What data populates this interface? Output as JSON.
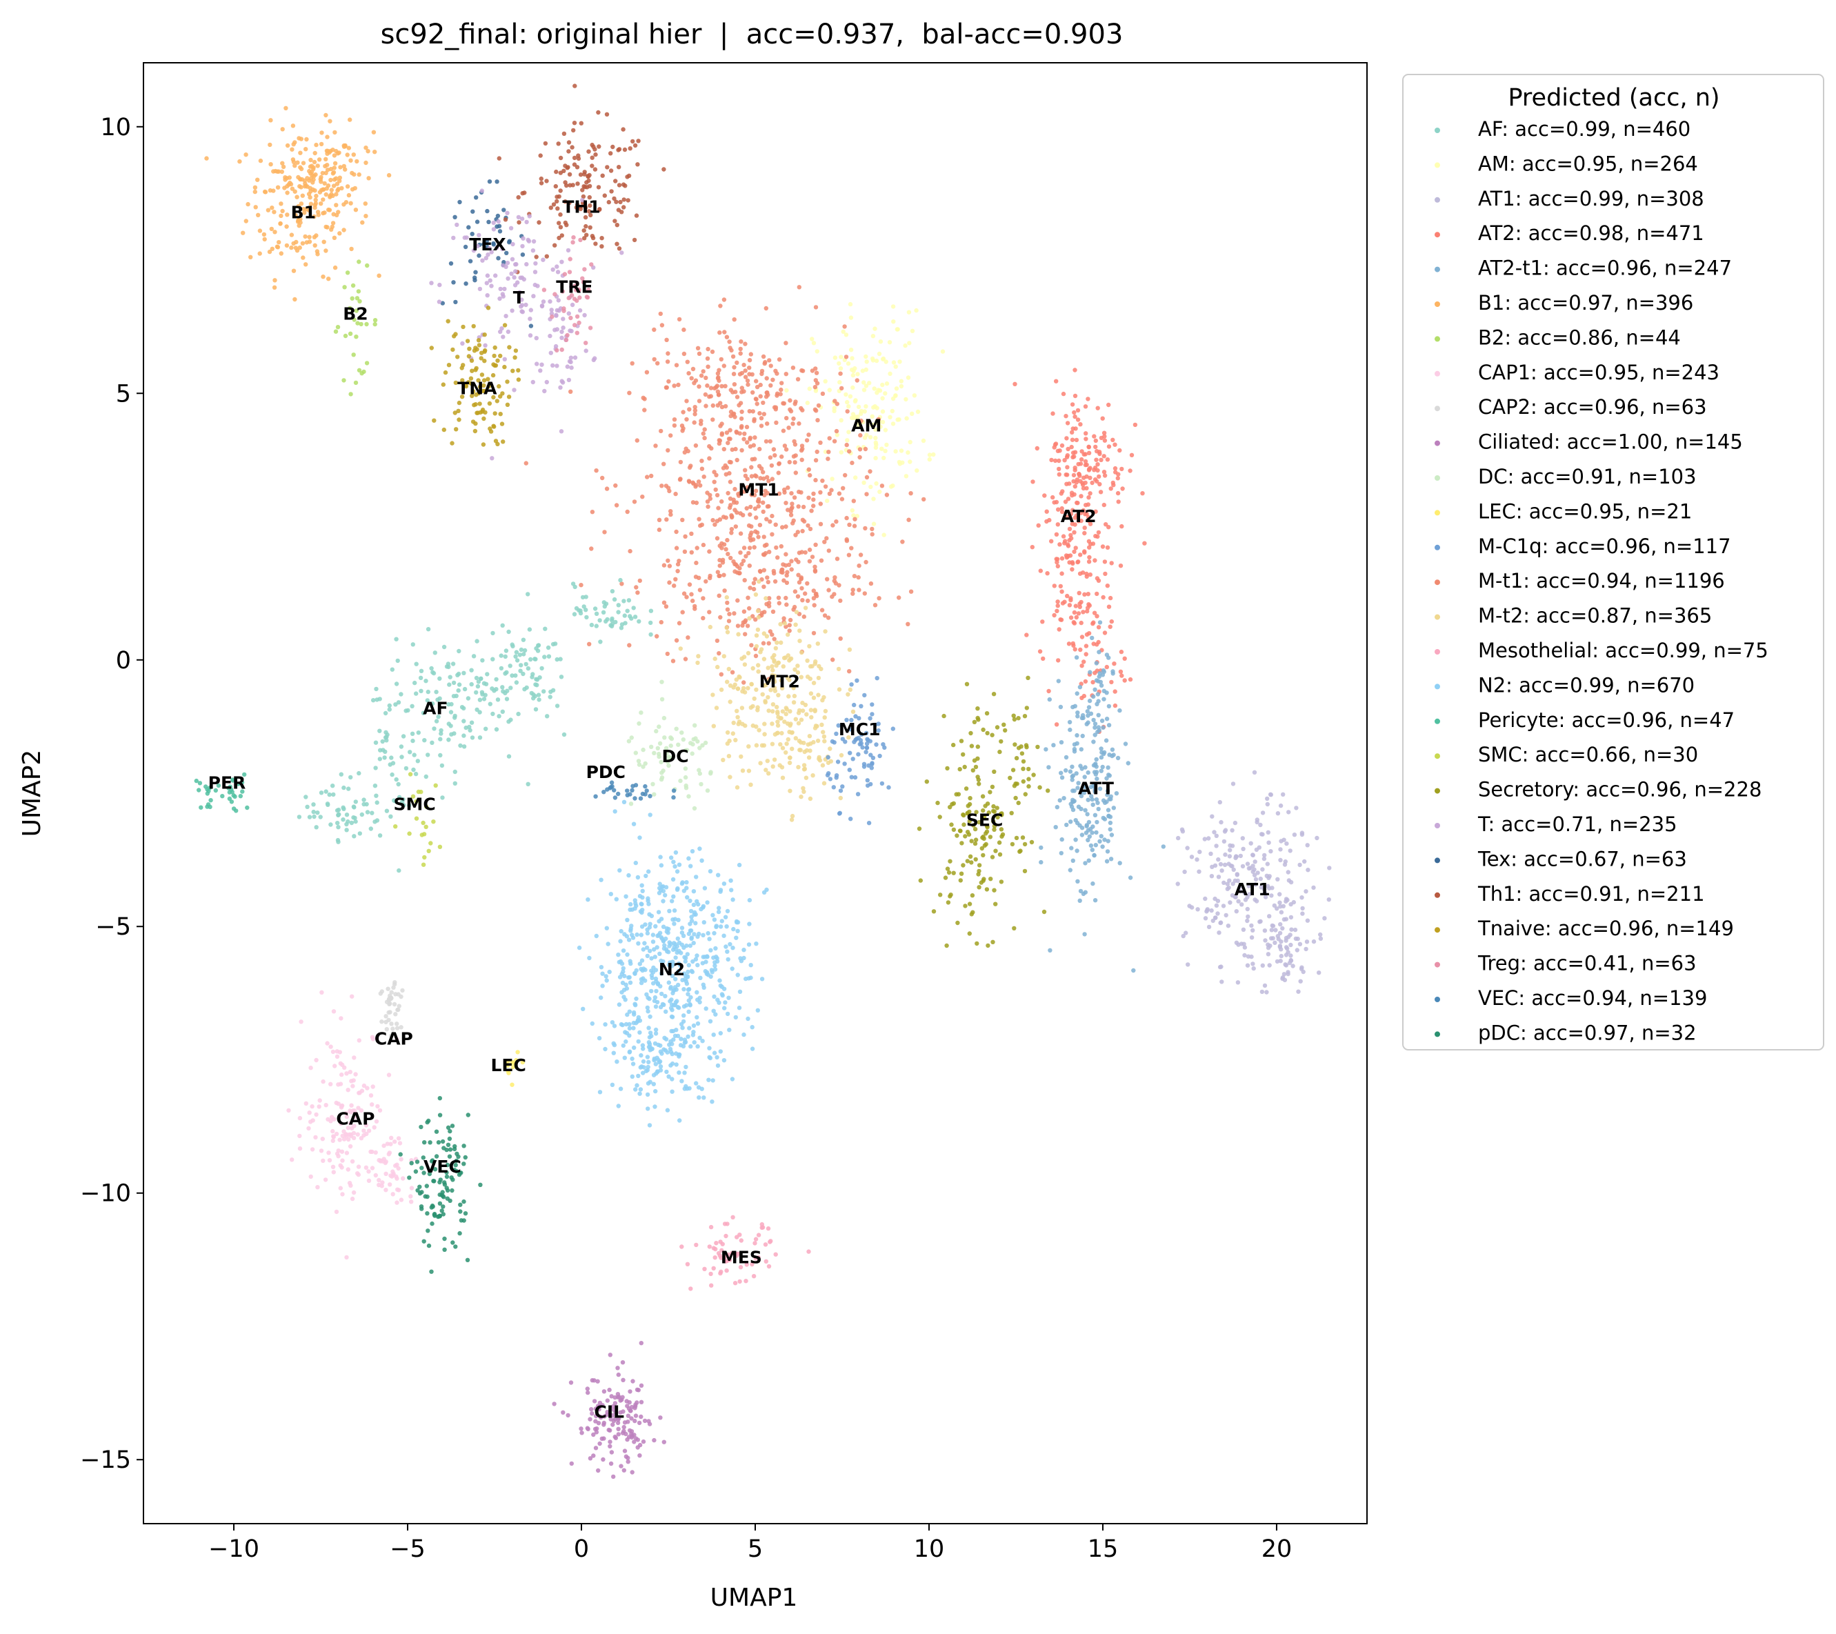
{
  "chart_data": {
    "type": "scatter",
    "title": "sc92_final: original hier  |  acc=0.937,  bal-acc=0.903",
    "xlabel": "UMAP1",
    "ylabel": "UMAP2",
    "xlim": [
      -12.6,
      22.6
    ],
    "ylim": [
      -16.2,
      11.2
    ],
    "xticks": [
      -10,
      -5,
      0,
      5,
      10,
      15,
      20
    ],
    "yticks": [
      -15,
      -10,
      -5,
      0,
      5,
      10
    ],
    "xtick_labels": [
      "−10",
      "−5",
      "0",
      "5",
      "10",
      "15",
      "20"
    ],
    "ytick_labels": [
      "−15",
      "−10",
      "−5",
      "0",
      "5",
      "10"
    ],
    "grid": false,
    "legend_title": "Predicted (acc, n)",
    "legend_position": "outside-right-top",
    "series": [
      {
        "name": "AF: acc=0.99, n=460",
        "color": "#8dd3c7"
      },
      {
        "name": "AM: acc=0.95, n=264",
        "color": "#ffffb3"
      },
      {
        "name": "AT1: acc=0.99, n=308",
        "color": "#bebada"
      },
      {
        "name": "AT2: acc=0.98, n=471",
        "color": "#fb8072"
      },
      {
        "name": "AT2-t1: acc=0.96, n=247",
        "color": "#80b1d3"
      },
      {
        "name": "B1: acc=0.97, n=396",
        "color": "#fdb462"
      },
      {
        "name": "B2: acc=0.86, n=44",
        "color": "#b3de69"
      },
      {
        "name": "CAP1: acc=0.95, n=243",
        "color": "#fccde5"
      },
      {
        "name": "CAP2: acc=0.96, n=63",
        "color": "#d9d9d9"
      },
      {
        "name": "Ciliated: acc=1.00, n=145",
        "color": "#bc80bd"
      },
      {
        "name": "DC: acc=0.91, n=103",
        "color": "#ccebc5"
      },
      {
        "name": "LEC: acc=0.95, n=21",
        "color": "#ffed6f"
      },
      {
        "name": "M-C1q: acc=0.96, n=117",
        "color": "#6fa0d6"
      },
      {
        "name": "M-t1: acc=0.94, n=1196",
        "color": "#f08a70"
      },
      {
        "name": "M-t2: acc=0.87, n=365",
        "color": "#f0d890"
      },
      {
        "name": "Mesothelial: acc=0.99, n=75",
        "color": "#f9a8c0"
      },
      {
        "name": "N2: acc=0.99, n=670",
        "color": "#8fd0f5"
      },
      {
        "name": "Pericyte: acc=0.96, n=47",
        "color": "#50c0a0"
      },
      {
        "name": "SMC: acc=0.66, n=30",
        "color": "#c8d850"
      },
      {
        "name": "Secretory: acc=0.96, n=228",
        "color": "#a0a020"
      },
      {
        "name": "T: acc=0.71, n=235",
        "color": "#c8a8d8"
      },
      {
        "name": "Tex: acc=0.67, n=63",
        "color": "#3a6a98"
      },
      {
        "name": "Th1: acc=0.91, n=211",
        "color": "#b85a40"
      },
      {
        "name": "Tnaive: acc=0.96, n=149",
        "color": "#c0a020"
      },
      {
        "name": "Treg: acc=0.41, n=63",
        "color": "#e890a8"
      },
      {
        "name": "VEC: acc=0.94, n=139",
        "color": "#4a88b8"
      },
      {
        "name": "pDC: acc=0.97, n=32",
        "color": "#2a9070"
      }
    ],
    "cluster_labels": [
      {
        "text": "B1",
        "x": -8.0,
        "y": 8.4
      },
      {
        "text": "B2",
        "x": -6.5,
        "y": 6.5
      },
      {
        "text": "TEX",
        "x": -2.7,
        "y": 7.8
      },
      {
        "text": "TH1",
        "x": 0.0,
        "y": 8.5
      },
      {
        "text": "T",
        "x": -1.8,
        "y": 6.8
      },
      {
        "text": "TRE",
        "x": -0.2,
        "y": 7.0
      },
      {
        "text": "TNA",
        "x": -3.0,
        "y": 5.1
      },
      {
        "text": "AM",
        "x": 8.2,
        "y": 4.4
      },
      {
        "text": "MT1",
        "x": 5.1,
        "y": 3.2
      },
      {
        "text": "AT2",
        "x": 14.3,
        "y": 2.7
      },
      {
        "text": "AF",
        "x": -4.2,
        "y": -0.9
      },
      {
        "text": "MT2",
        "x": 5.7,
        "y": -0.4
      },
      {
        "text": "MC1",
        "x": 8.0,
        "y": -1.3
      },
      {
        "text": "DC",
        "x": 2.7,
        "y": -1.8
      },
      {
        "text": "PDC",
        "x": 0.7,
        "y": -2.1
      },
      {
        "text": "PER",
        "x": -10.2,
        "y": -2.3
      },
      {
        "text": "SMC",
        "x": -4.8,
        "y": -2.7
      },
      {
        "text": "ATT",
        "x": 14.8,
        "y": -2.4
      },
      {
        "text": "SEC",
        "x": 11.6,
        "y": -3.0
      },
      {
        "text": "AT1",
        "x": 19.3,
        "y": -4.3
      },
      {
        "text": "N2",
        "x": 2.6,
        "y": -5.8
      },
      {
        "text": "CAP",
        "x": -5.4,
        "y": -7.1
      },
      {
        "text": "LEC",
        "x": -2.1,
        "y": -7.6
      },
      {
        "text": "CAP",
        "x": -6.5,
        "y": -8.6
      },
      {
        "text": "VEC",
        "x": -4.0,
        "y": -9.5
      },
      {
        "text": "MES",
        "x": 4.6,
        "y": -11.2
      },
      {
        "text": "CIL",
        "x": 0.8,
        "y": -14.1
      }
    ]
  }
}
